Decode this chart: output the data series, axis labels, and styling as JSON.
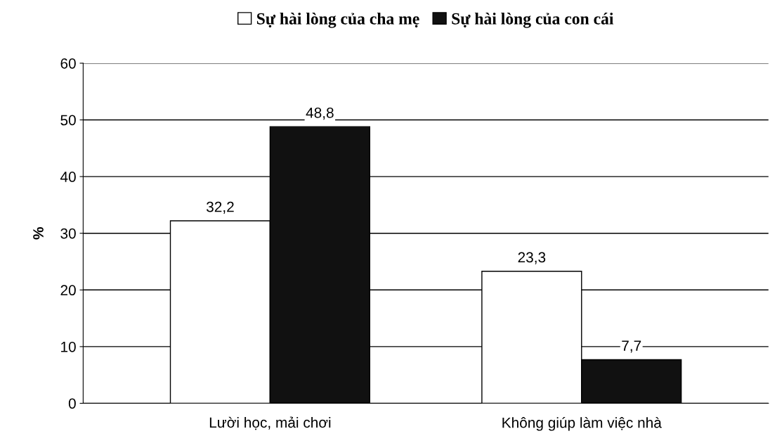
{
  "chart_data": {
    "type": "bar",
    "ylabel": "%",
    "categories": [
      "Lười học, mải chơi",
      "Không giúp làm việc nhà"
    ],
    "series": [
      {
        "name": "Sự hài lòng của cha mẹ",
        "color": "#ffffff",
        "values": [
          32.2,
          23.3
        ],
        "value_labels": [
          "32,2",
          "23,3"
        ]
      },
      {
        "name": "Sự hài lòng của con cái",
        "color": "#111111",
        "values": [
          48.8,
          7.7
        ],
        "value_labels": [
          "48,8",
          "7,7"
        ]
      }
    ],
    "ylim": [
      0,
      60
    ],
    "yticks": [
      0,
      10,
      20,
      30,
      40,
      50,
      60
    ],
    "grid": "y",
    "legend": "top"
  }
}
